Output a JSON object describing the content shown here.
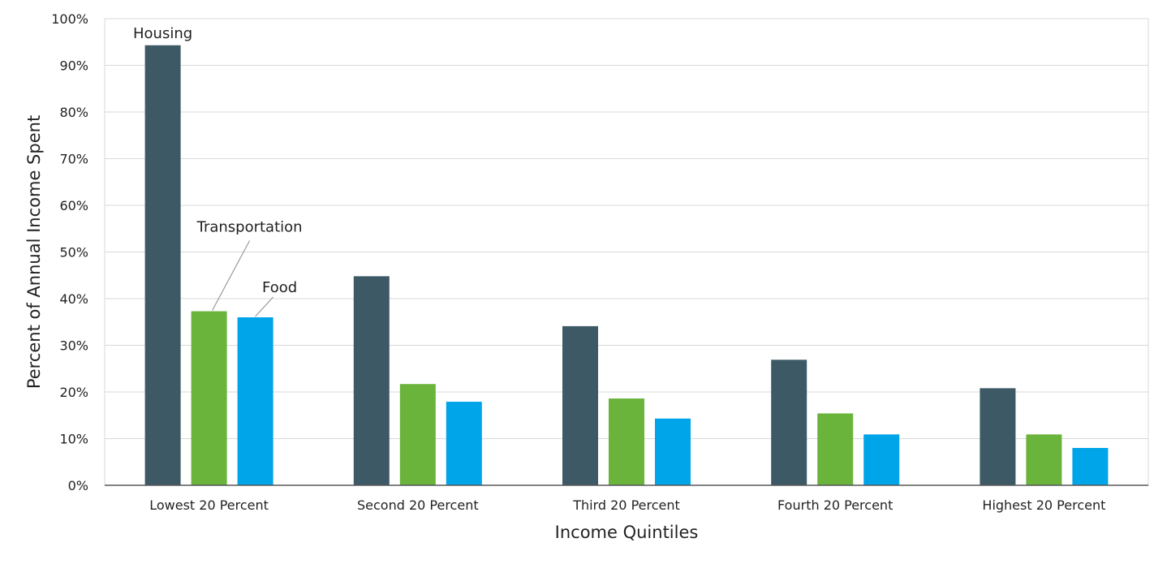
{
  "chart_data": {
    "type": "bar",
    "categories": [
      "Lowest 20 Percent",
      "Second 20 Percent",
      "Third 20 Percent",
      "Fourth 20 Percent",
      "Highest 20 Percent"
    ],
    "series": [
      {
        "name": "Housing",
        "values": [
          94.3,
          44.8,
          34.1,
          26.9,
          20.8
        ],
        "color": "#3d5966"
      },
      {
        "name": "Transportation",
        "values": [
          37.3,
          21.7,
          18.6,
          15.4,
          10.9
        ],
        "color": "#6ab43c"
      },
      {
        "name": "Food",
        "values": [
          36.0,
          17.9,
          14.3,
          10.9,
          8.0
        ],
        "color": "#00a4e8"
      }
    ],
    "title": "",
    "xlabel": "Income Quintiles",
    "ylabel": "Percent of  Annual Income Spent",
    "ylim": [
      0,
      100
    ],
    "yticks": [
      "0%",
      "10%",
      "20%",
      "30%",
      "40%",
      "50%",
      "60%",
      "70%",
      "80%",
      "90%",
      "100%"
    ],
    "grid": true,
    "legend": "none (series labeled directly on first group)"
  }
}
